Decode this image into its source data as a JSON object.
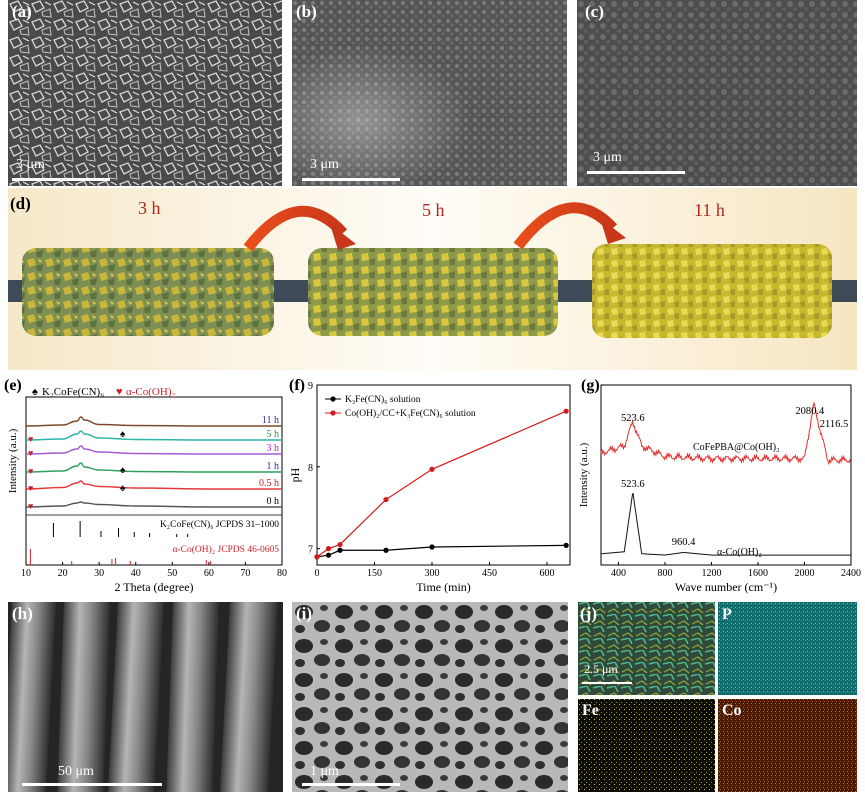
{
  "row1": {
    "a": {
      "label": "(a)",
      "scale": "3 μm"
    },
    "b": {
      "label": "(b)",
      "scale": "3 μm"
    },
    "c": {
      "label": "(c)",
      "scale": "3 μm"
    }
  },
  "d": {
    "label": "(d)",
    "times": [
      "3 h",
      "5 h",
      "11 h"
    ]
  },
  "e": {
    "label": "(e)",
    "legend_k": "K₂CoFe(CN)₆",
    "legend_co": "α-Co(OH)₂",
    "ylabel": "Intensity (a.u.)",
    "xlabel": "2 Theta (degree)",
    "traces": [
      "11 h",
      "5 h",
      "3 h",
      "1 h",
      "0.5 h",
      "0 h"
    ],
    "ref1": "K₂CoFe(CN)₆ JCPDS 31–1000",
    "ref2": "α-Co(OH)₂ JCPDS 46-0605"
  },
  "f": {
    "label": "(f)",
    "legend1": "K₃Fe(CN)₆ solution",
    "legend2": "Co(OH)₂/CC+K₃Fe(CN)₆ solution",
    "ylabel": "pH",
    "xlabel": "Time (min)"
  },
  "g": {
    "label": "(g)",
    "ylabel": "Intensity (a.u.)",
    "xlabel": "Wave number (cm⁻¹)",
    "top_label": "CoFePBA@Co(OH)₂",
    "bottom_label": "α-Co(OH)₂",
    "peak_top_1": "523.6",
    "peak_top_2": "2080.4",
    "peak_top_3": "2116.5",
    "peak_bot_1": "523.6",
    "peak_bot_2": "960.4"
  },
  "h": {
    "label": "(h)",
    "scale": "50 μm"
  },
  "i": {
    "label": "(i)",
    "scale": "1 μm"
  },
  "j": {
    "label": "(j)",
    "scale": "2.5 μm",
    "maps": [
      "P",
      "Fe",
      "Co"
    ]
  },
  "chart_data": [
    {
      "type": "line",
      "panel": "e",
      "xlabel": "2 Theta (degree)",
      "ylabel": "Intensity (a.u.)",
      "xlim": [
        10,
        80
      ],
      "xticks": [
        10,
        20,
        30,
        40,
        50,
        60,
        70,
        80
      ],
      "series": [
        {
          "name": "11 h",
          "x": [
            10,
            20,
            24,
            25,
            26,
            30,
            40,
            60,
            80
          ],
          "y": [
            0.1,
            0.2,
            0.6,
            1.0,
            0.7,
            0.25,
            0.15,
            0.1,
            0.1
          ]
        },
        {
          "name": "5 h",
          "x": [
            10,
            20,
            24,
            25,
            26,
            30,
            40,
            60,
            80
          ],
          "y": [
            0.1,
            0.2,
            0.7,
            1.0,
            0.7,
            0.3,
            0.15,
            0.1,
            0.1
          ]
        },
        {
          "name": "3 h",
          "x": [
            10,
            20,
            24,
            25,
            26,
            30,
            40,
            60,
            80
          ],
          "y": [
            0.1,
            0.2,
            0.6,
            0.9,
            0.6,
            0.3,
            0.15,
            0.1,
            0.1
          ]
        },
        {
          "name": "1 h",
          "x": [
            10,
            20,
            24,
            25,
            26,
            30,
            40,
            60,
            80
          ],
          "y": [
            0.1,
            0.2,
            0.7,
            1.0,
            0.6,
            0.3,
            0.15,
            0.1,
            0.1
          ]
        },
        {
          "name": "0.5 h",
          "x": [
            10,
            20,
            24,
            25,
            26,
            30,
            40,
            60,
            80
          ],
          "y": [
            0.1,
            0.25,
            0.7,
            0.9,
            0.6,
            0.35,
            0.2,
            0.1,
            0.1
          ]
        },
        {
          "name": "0 h",
          "x": [
            10,
            20,
            24,
            25,
            26,
            30,
            40,
            60,
            80
          ],
          "y": [
            0.1,
            0.2,
            0.5,
            0.6,
            0.5,
            0.35,
            0.2,
            0.1,
            0.1
          ]
        }
      ],
      "reference_lines": [
        {
          "name": "K₂CoFe(CN)₆ JCPDS 31–1000",
          "x": [
            17.5,
            24.8,
            30.5,
            35.3,
            39.6,
            43.8,
            51.2,
            54.2
          ]
        },
        {
          "name": "α-Co(OH)₂ JCPDS 46-0605",
          "x": [
            11.2,
            22.5,
            33.5,
            34.5,
            38.5,
            59.3,
            60.5
          ]
        }
      ]
    },
    {
      "type": "line",
      "panel": "f",
      "xlabel": "Time (min)",
      "ylabel": "pH",
      "xlim": [
        0,
        660
      ],
      "ylim": [
        6.8,
        9.0
      ],
      "xticks": [
        0,
        150,
        300,
        450,
        600
      ],
      "yticks": [
        7,
        8,
        9
      ],
      "series": [
        {
          "name": "K₃Fe(CN)₆ solution",
          "x": [
            0,
            30,
            60,
            180,
            300,
            650
          ],
          "y": [
            6.9,
            6.92,
            6.98,
            6.98,
            7.02,
            7.04
          ]
        },
        {
          "name": "Co(OH)₂/CC+K₃Fe(CN)₆ solution",
          "x": [
            0,
            30,
            60,
            180,
            300,
            650
          ],
          "y": [
            6.9,
            7.0,
            7.05,
            7.6,
            7.97,
            8.68
          ]
        }
      ]
    },
    {
      "type": "line",
      "panel": "g",
      "xlabel": "Wave number (cm⁻¹)",
      "ylabel": "Intensity (a.u.)",
      "xlim": [
        250,
        2400
      ],
      "xticks": [
        400,
        800,
        1200,
        1600,
        2000,
        2400
      ],
      "series": [
        {
          "name": "CoFePBA@Co(OH)₂",
          "x": [
            250,
            450,
            523.6,
            600,
            800,
            1200,
            1600,
            2000,
            2080.4,
            2116.5,
            2200,
            2400
          ],
          "y": [
            0.2,
            0.3,
            0.65,
            0.3,
            0.15,
            0.12,
            0.12,
            0.12,
            0.9,
            0.65,
            0.1,
            0.1
          ]
        },
        {
          "name": "α-Co(OH)₂",
          "x": [
            250,
            450,
            523.6,
            600,
            800,
            960.4,
            1200,
            1600,
            2000,
            2400
          ],
          "y": [
            0.05,
            0.08,
            1.0,
            0.05,
            0.03,
            0.07,
            0.03,
            0.03,
            0.03,
            0.03
          ]
        }
      ]
    }
  ]
}
